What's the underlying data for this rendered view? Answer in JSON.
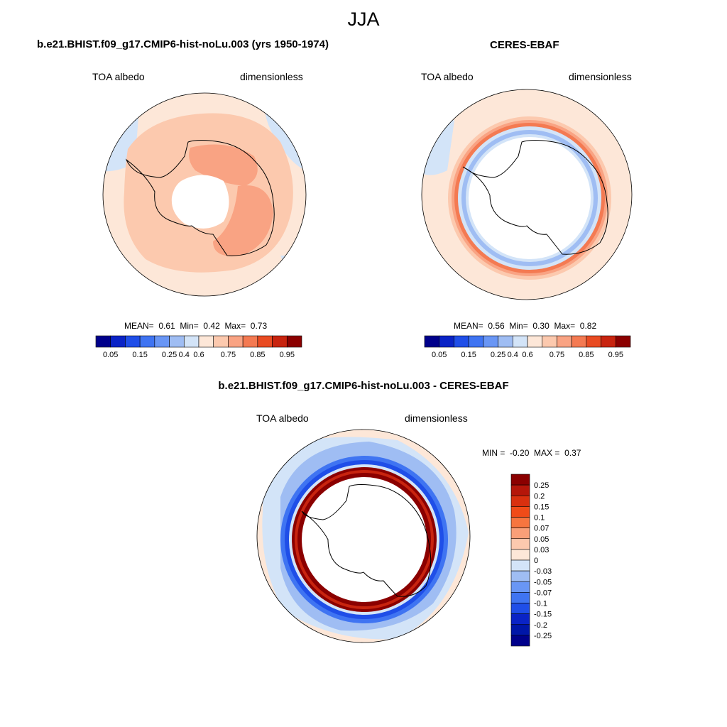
{
  "figure": {
    "title": "JJA"
  },
  "panels": {
    "model": {
      "title": "b.e21.BHIST.f09_g17.CMIP6-hist-noLu.003 (yrs 1950-1974)",
      "variable": "TOA albedo",
      "units": "dimensionless",
      "stats": {
        "mean_label": "MEAN=",
        "mean": "0.61",
        "min_label": "Min=",
        "min": "0.42",
        "max_label": "Max=",
        "max": "0.73"
      }
    },
    "obs": {
      "title": "CERES-EBAF",
      "variable": "TOA albedo",
      "units": "dimensionless",
      "stats": {
        "mean_label": "MEAN=",
        "mean": "0.56",
        "min_label": "Min=",
        "min": "0.30",
        "max_label": "Max=",
        "max": "0.82"
      }
    },
    "diff": {
      "title": "b.e21.BHIST.f09_g17.CMIP6-hist-noLu.003 - CERES-EBAF",
      "variable": "TOA albedo",
      "units": "dimensionless",
      "stats": {
        "min_label": "MIN =",
        "min": "-0.20",
        "max_label": "MAX =",
        "max": "0.37"
      }
    }
  },
  "chart_data": [
    {
      "type": "heatmap",
      "projection": "south-polar-stereographic",
      "title": "b.e21.BHIST.f09_g17.CMIP6-hist-noLu.003 (yrs 1950-1974)",
      "field": "TOA albedo",
      "units": "dimensionless",
      "mean": 0.61,
      "min": 0.42,
      "max": 0.73,
      "colorbar_ticks": [
        "0.05",
        "0.15",
        "0.25",
        "0.4",
        "0.6",
        "0.75",
        "0.85",
        "0.95"
      ],
      "colorbar_colors": [
        "#00008b",
        "#0a23c6",
        "#1f4ee8",
        "#3f74f2",
        "#6996f5",
        "#9fbdf3",
        "#d3e4f8",
        "#fde7d8",
        "#fcc9ae",
        "#f9a383",
        "#f47a52",
        "#e94b22",
        "#c8240f",
        "#8b0000"
      ],
      "rings": [
        {
          "lat_band": "outer",
          "value": 0.55
        },
        {
          "lat_band": "mid",
          "value": 0.62
        },
        {
          "lat_band": "continent",
          "value": 0.7
        }
      ]
    },
    {
      "type": "heatmap",
      "projection": "south-polar-stereographic",
      "title": "CERES-EBAF",
      "field": "TOA albedo",
      "units": "dimensionless",
      "mean": 0.56,
      "min": 0.3,
      "max": 0.82,
      "colorbar_ticks": [
        "0.05",
        "0.15",
        "0.25",
        "0.4",
        "0.6",
        "0.75",
        "0.85",
        "0.95"
      ],
      "colorbar_colors": [
        "#00008b",
        "#0a23c6",
        "#1f4ee8",
        "#3f74f2",
        "#6996f5",
        "#9fbdf3",
        "#d3e4f8",
        "#fde7d8",
        "#fcc9ae",
        "#f9a383",
        "#f47a52",
        "#e94b22",
        "#c8240f",
        "#8b0000"
      ],
      "rings": [
        {
          "lat_band": "outer",
          "value": 0.55
        },
        {
          "lat_band": "sea-ice-edge",
          "value": 0.78
        },
        {
          "lat_band": "inner",
          "value": 0.4
        }
      ]
    },
    {
      "type": "heatmap",
      "projection": "south-polar-stereographic",
      "title": "b.e21.BHIST.f09_g17.CMIP6-hist-noLu.003 - CERES-EBAF",
      "field": "TOA albedo",
      "units": "dimensionless",
      "min": -0.2,
      "max": 0.37,
      "colorbar_ticks": [
        "0.25",
        "0.2",
        "0.15",
        "0.1",
        "0.07",
        "0.05",
        "0.03",
        "0",
        "-0.03",
        "-0.05",
        "-0.07",
        "-0.1",
        "-0.15",
        "-0.2",
        "-0.25"
      ],
      "colorbar_colors": [
        "#8b0000",
        "#b5160a",
        "#d9300f",
        "#f04b18",
        "#f7753f",
        "#fa9f78",
        "#fcc9ae",
        "#fde7d8",
        "#d3e4f8",
        "#9fbdf3",
        "#6996f5",
        "#3f74f2",
        "#1f4ee8",
        "#0a23c6",
        "#0016a8",
        "#00008b"
      ],
      "rings": [
        {
          "lat_band": "outer",
          "value": -0.03
        },
        {
          "lat_band": "ice-edge",
          "value": -0.12
        },
        {
          "lat_band": "coastal",
          "value": 0.3
        }
      ]
    }
  ]
}
